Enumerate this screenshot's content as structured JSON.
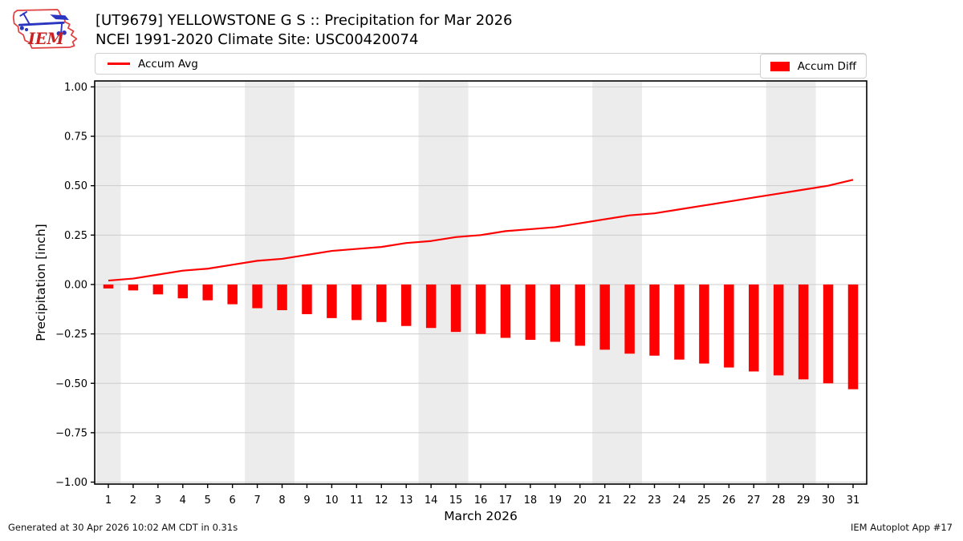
{
  "header": {
    "title_line1": "[UT9679] YELLOWSTONE G S :: Precipitation for Mar 2026",
    "title_line2": "NCEI 1991-2020 Climate Site: USC00420074",
    "logo_text": "IEM"
  },
  "legend": {
    "avg_label": "Accum Avg",
    "diff_label": "Accum Diff"
  },
  "footer": {
    "generated": "Generated at 30 Apr 2026 10:02 AM CDT in 0.31s",
    "app": "IEM Autoplot App #17"
  },
  "colors": {
    "accent_red": "#ff0000",
    "weekend_band": "#ececec",
    "grid": "#cccccc",
    "spine": "#000000",
    "logo_outline_red": "#e04040",
    "logo_instrument_blue": "#2a35c0",
    "logo_text_red": "#c92222"
  },
  "chart_data": {
    "type": "bar+line",
    "title": "[UT9679] YELLOWSTONE G S :: Precipitation for Mar 2026",
    "subtitle": "NCEI 1991-2020 Climate Site: USC00420074",
    "xlabel": "March 2026",
    "ylabel": "Precipitation [inch]",
    "x": [
      1,
      2,
      3,
      4,
      5,
      6,
      7,
      8,
      9,
      10,
      11,
      12,
      13,
      14,
      15,
      16,
      17,
      18,
      19,
      20,
      21,
      22,
      23,
      24,
      25,
      26,
      27,
      28,
      29,
      30,
      31
    ],
    "series": [
      {
        "name": "Accum Avg",
        "type": "line",
        "color": "#ff0000",
        "values": [
          0.02,
          0.03,
          0.05,
          0.07,
          0.08,
          0.1,
          0.12,
          0.13,
          0.15,
          0.17,
          0.18,
          0.19,
          0.21,
          0.22,
          0.24,
          0.25,
          0.27,
          0.28,
          0.29,
          0.31,
          0.33,
          0.35,
          0.36,
          0.38,
          0.4,
          0.42,
          0.44,
          0.46,
          0.48,
          0.5,
          0.53
        ]
      },
      {
        "name": "Accum Diff",
        "type": "bar",
        "color": "#ff0000",
        "values": [
          -0.02,
          -0.03,
          -0.05,
          -0.07,
          -0.08,
          -0.1,
          -0.12,
          -0.13,
          -0.15,
          -0.17,
          -0.18,
          -0.19,
          -0.21,
          -0.22,
          -0.24,
          -0.25,
          -0.27,
          -0.28,
          -0.29,
          -0.31,
          -0.33,
          -0.35,
          -0.36,
          -0.38,
          -0.4,
          -0.42,
          -0.44,
          -0.46,
          -0.48,
          -0.5,
          -0.53
        ]
      }
    ],
    "ylim": [
      -1.01,
      1.03
    ],
    "yticks": [
      1.0,
      0.75,
      0.5,
      0.25,
      0.0,
      -0.25,
      -0.5,
      -0.75,
      -1.0
    ],
    "weekend_shading_days": [
      [
        1,
        1
      ],
      [
        7,
        8
      ],
      [
        14,
        15
      ],
      [
        21,
        22
      ],
      [
        28,
        29
      ]
    ],
    "grid": "horizontal",
    "legend_position": "top expanded: Accum Avg left, Accum Diff right"
  }
}
